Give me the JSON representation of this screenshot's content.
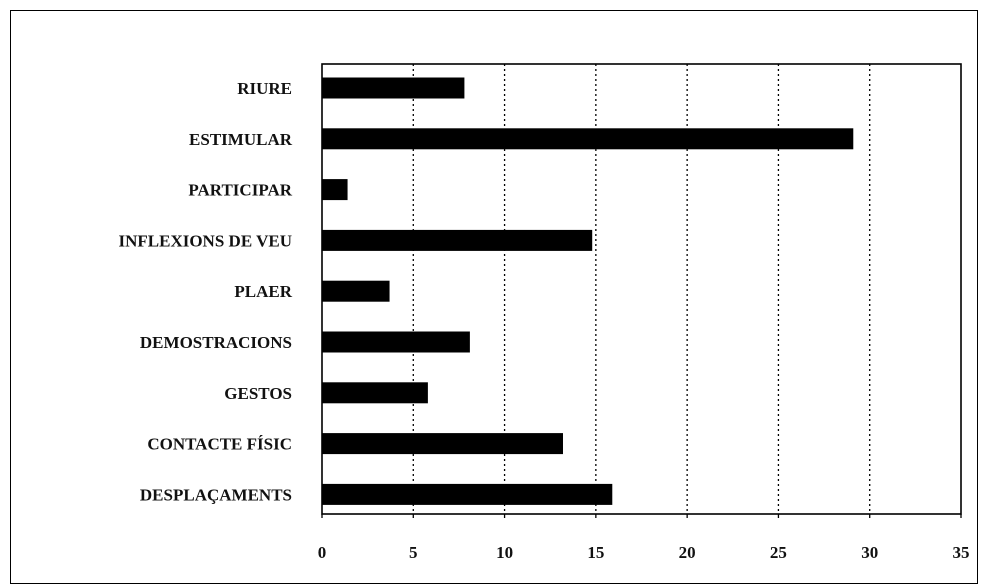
{
  "chart_data": {
    "type": "bar",
    "orientation": "horizontal",
    "categories": [
      "RIURE",
      "ESTIMULAR",
      "PARTICIPAR",
      "INFLEXIONS DE VEU",
      "PLAER",
      "DEMOSTRACIONS",
      "GESTOS",
      "CONTACTE FÍSIC",
      "DESPLAÇAMENTS"
    ],
    "values": [
      7.8,
      29.1,
      1.4,
      14.8,
      3.7,
      8.1,
      5.8,
      13.2,
      15.9
    ],
    "xlim": [
      0,
      35
    ],
    "xticks": [
      "0",
      "5",
      "10",
      "15",
      "20",
      "25",
      "30",
      "35"
    ],
    "grid": "vertical-dotted",
    "title": "",
    "xlabel": "",
    "ylabel": "",
    "bar_color": "#000000"
  }
}
